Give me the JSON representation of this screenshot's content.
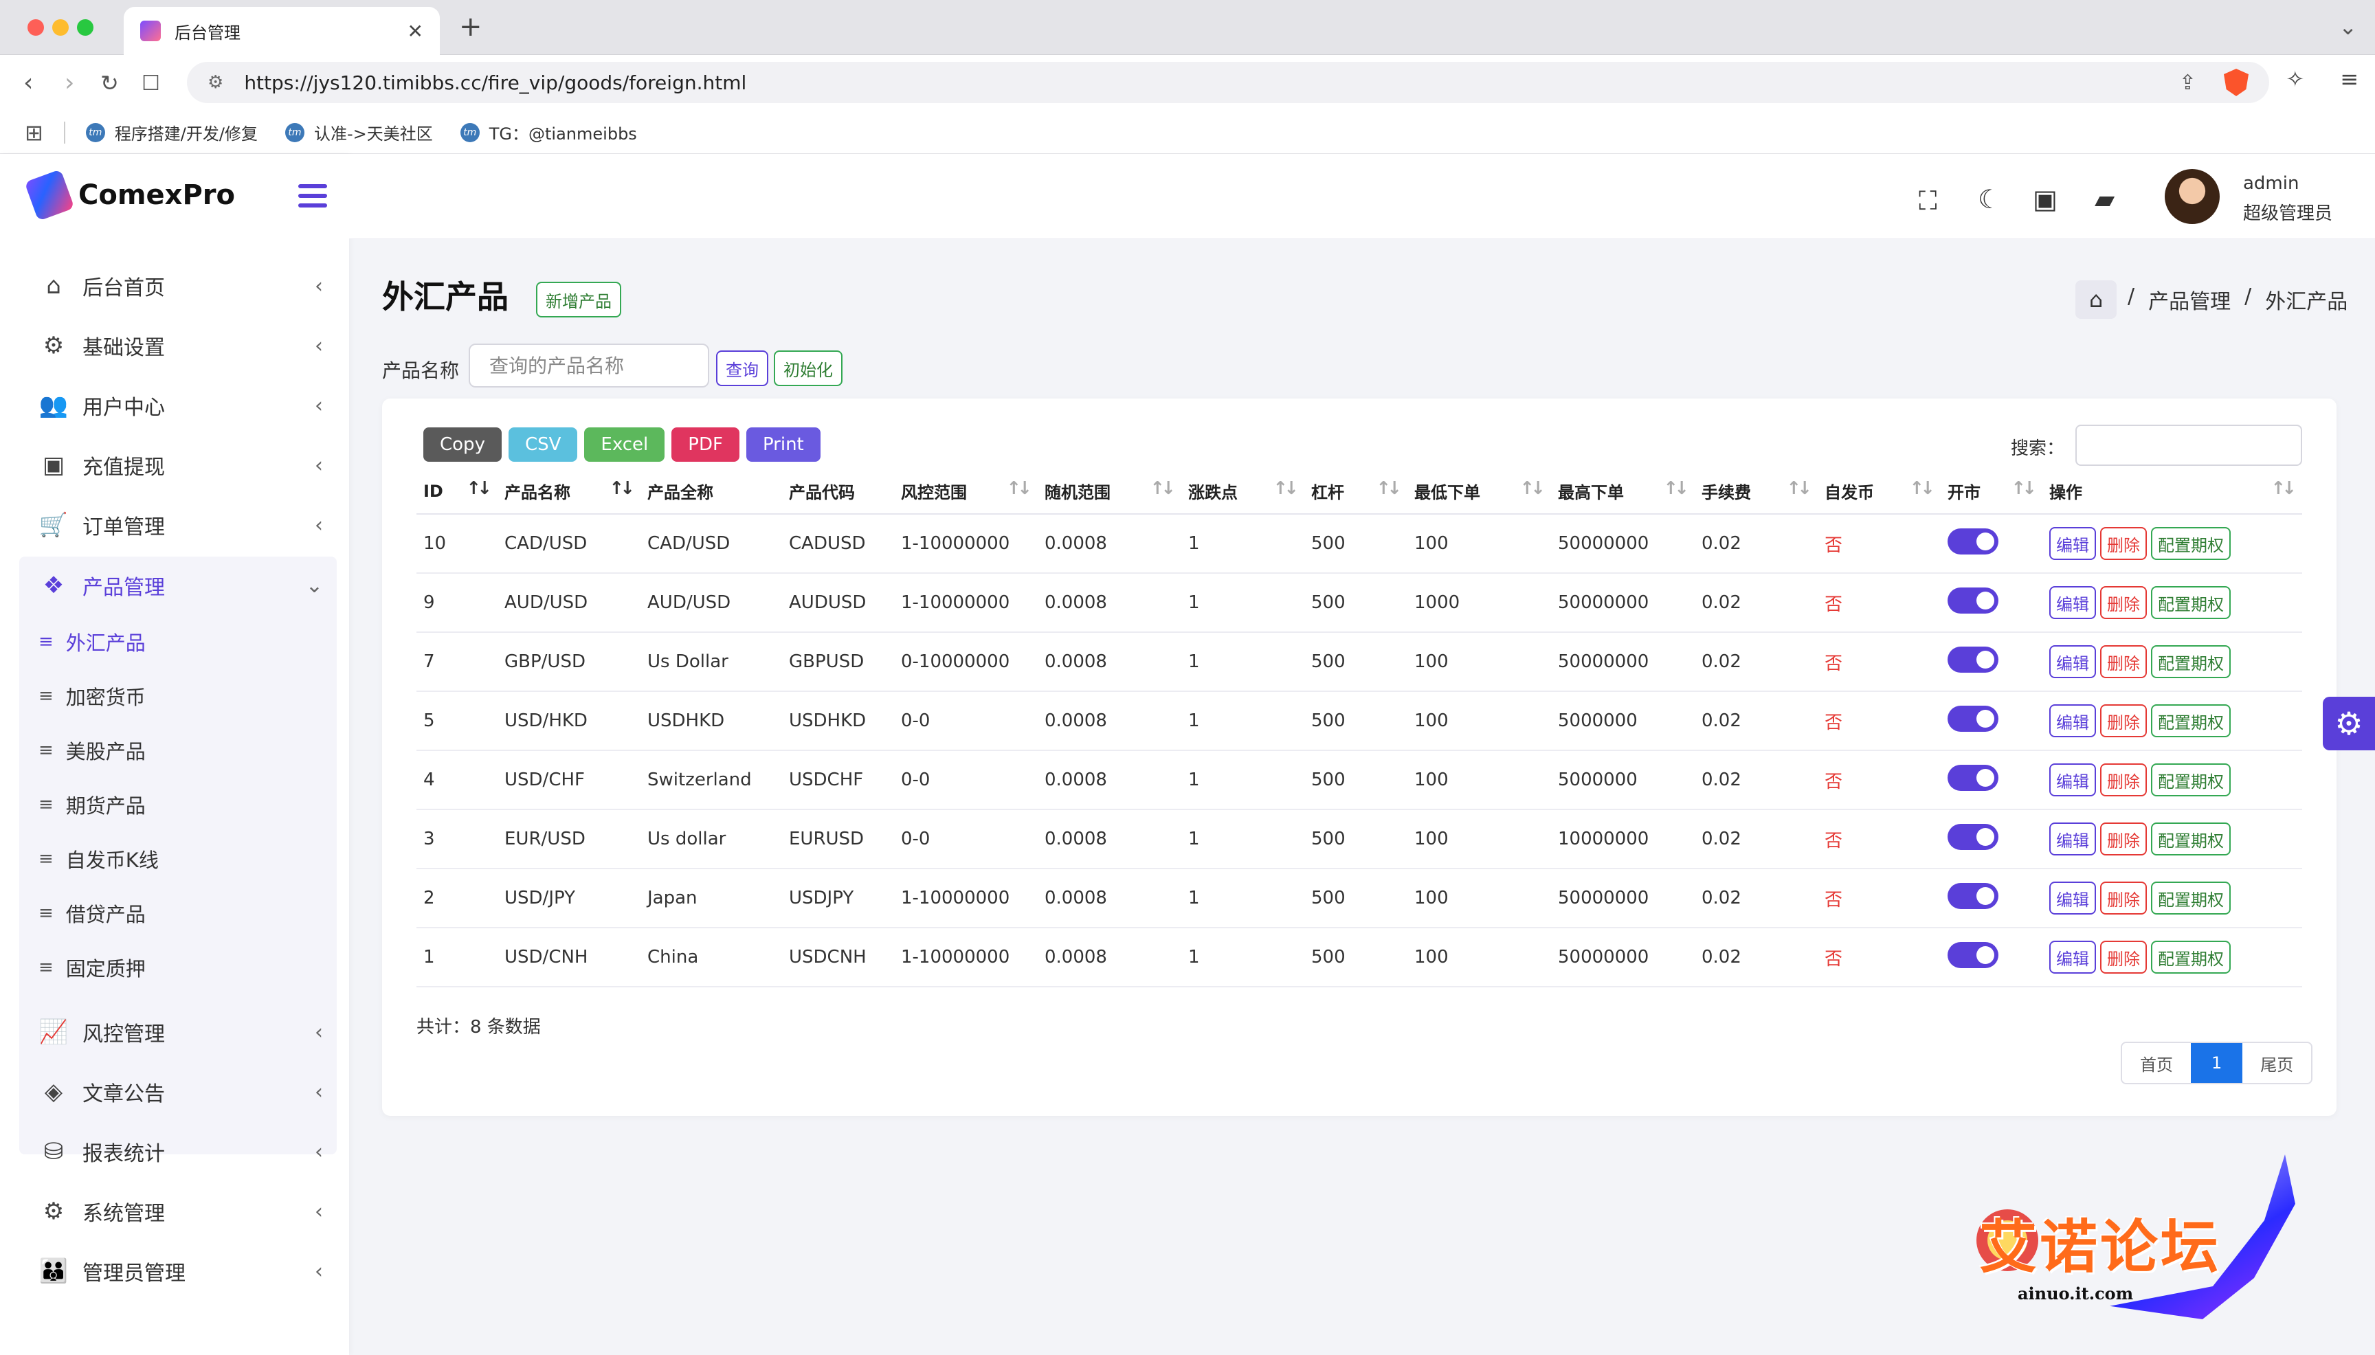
{
  "browser": {
    "tab_title": "后台管理",
    "url": "https://jys120.timibbs.cc/fire_vip/goods/foreign.html",
    "bookmarks": [
      "程序搭建/开发/修复",
      "认准->天美社区",
      "TG：@tianmeibbs"
    ],
    "bookmark_icon_text": "tm"
  },
  "sidebar": {
    "logo": "ComexPro",
    "menu": [
      {
        "label": "后台首页",
        "icon": "home-icon"
      },
      {
        "label": "基础设置",
        "icon": "cogs-icon"
      },
      {
        "label": "用户中心",
        "icon": "users-icon"
      },
      {
        "label": "充值提现",
        "icon": "money-icon"
      },
      {
        "label": "订单管理",
        "icon": "cart-icon"
      },
      {
        "label": "产品管理",
        "icon": "cubes-icon"
      }
    ],
    "submenu": [
      "外汇产品",
      "加密货币",
      "美股产品",
      "期货产品",
      "自发币K线",
      "借贷产品",
      "固定质押"
    ],
    "menu_bottom": [
      {
        "label": "风控管理",
        "icon": "chart-line-icon"
      },
      {
        "label": "文章公告",
        "icon": "layers-icon"
      },
      {
        "label": "报表统计",
        "icon": "coins-icon"
      },
      {
        "label": "系统管理",
        "icon": "gear-icon"
      },
      {
        "label": "管理员管理",
        "icon": "user-group-icon"
      }
    ]
  },
  "header": {
    "user_name": "admin",
    "user_role": "超级管理员"
  },
  "page": {
    "title": "外汇产品",
    "new_button": "新增产品",
    "breadcrumb": [
      "产品管理",
      "外汇产品"
    ],
    "breadcrumb_sep": "/",
    "filter_label": "产品名称",
    "filter_placeholder": "查询的产品名称",
    "query_button": "查询",
    "reset_button": "初始化"
  },
  "table": {
    "export_buttons": [
      {
        "label": "Copy",
        "color": "#5a5a5a"
      },
      {
        "label": "CSV",
        "color": "#5bc0de"
      },
      {
        "label": "Excel",
        "color": "#5cb85c"
      },
      {
        "label": "PDF",
        "color": "#e0355f"
      },
      {
        "label": "Print",
        "color": "#6a5ae0"
      }
    ],
    "search_label": "搜索：",
    "columns": [
      "ID",
      "产品名称",
      "产品全称",
      "产品代码",
      "风控范围",
      "随机范围",
      "涨跌点",
      "杠杆",
      "最低下单",
      "最高下单",
      "手续费",
      "自发币",
      "开市",
      "操作"
    ],
    "rows": [
      [
        "10",
        "CAD/USD",
        "CAD/USD",
        "CADUSD",
        "1-10000000",
        "0.0008",
        "1",
        "500",
        "100",
        "50000000",
        "0.02",
        "否"
      ],
      [
        "9",
        "AUD/USD",
        "AUD/USD",
        "AUDUSD",
        "1-10000000",
        "0.0008",
        "1",
        "500",
        "1000",
        "50000000",
        "0.02",
        "否"
      ],
      [
        "7",
        "GBP/USD",
        "Us Dollar",
        "GBPUSD",
        "0-10000000",
        "0.0008",
        "1",
        "500",
        "100",
        "50000000",
        "0.02",
        "否"
      ],
      [
        "5",
        "USD/HKD",
        "USDHKD",
        "USDHKD",
        "0-0",
        "0.0008",
        "1",
        "500",
        "100",
        "5000000",
        "0.02",
        "否"
      ],
      [
        "4",
        "USD/CHF",
        "Switzerland",
        "USDCHF",
        "0-0",
        "0.0008",
        "1",
        "500",
        "100",
        "5000000",
        "0.02",
        "否"
      ],
      [
        "3",
        "EUR/USD",
        "Us dollar",
        "EURUSD",
        "0-0",
        "0.0008",
        "1",
        "500",
        "100",
        "10000000",
        "0.02",
        "否"
      ],
      [
        "2",
        "USD/JPY",
        "Japan",
        "USDJPY",
        "1-10000000",
        "0.0008",
        "1",
        "500",
        "100",
        "50000000",
        "0.02",
        "否"
      ],
      [
        "1",
        "USD/CNH",
        "China",
        "USDCNH",
        "1-10000000",
        "0.0008",
        "1",
        "500",
        "100",
        "50000000",
        "0.02",
        "否"
      ]
    ],
    "actions": {
      "edit": "编辑",
      "delete": "删除",
      "config": "配置期权"
    },
    "total": "共计：8 条数据",
    "pager": {
      "first": "首页",
      "current": "1",
      "last": "尾页"
    }
  },
  "watermark": {
    "text": "艾诺论坛",
    "sub": "ainuo.it.com"
  },
  "colors": {
    "accent": "#5a3fd9",
    "danger": "#e53935",
    "success": "#34a853"
  }
}
